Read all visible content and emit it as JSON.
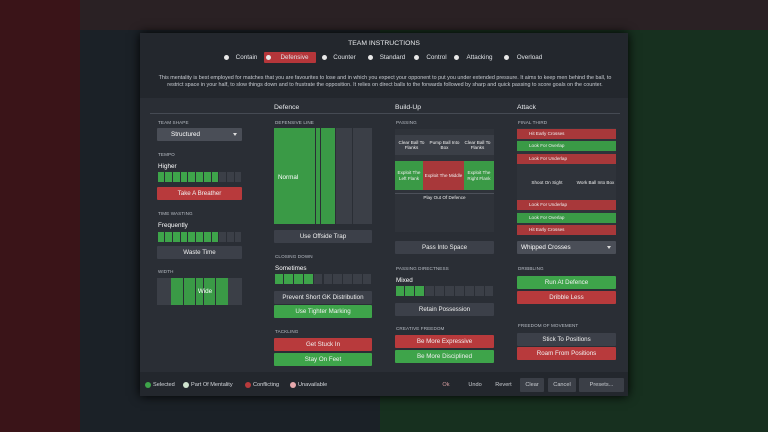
{
  "title": "TEAM INSTRUCTIONS",
  "mentalities": [
    "Contain",
    "Defensive",
    "Counter",
    "Standard",
    "Control",
    "Attacking",
    "Overload"
  ],
  "description": "This mentality is best employed for matches that you are favourites to lose and in which you expect your opponent to put you under extended pressure. It aims to keep men behind the ball, to restrict space in your half, to slow things down and to frustrate the opposition. It relies on direct balls to the forwards followed by sharp and quick passing to score goals on the counter.",
  "columns": [
    "Defence",
    "Build-Up",
    "Attack"
  ],
  "general": {
    "team_shape": {
      "label": "TEAM SHAPE",
      "value": "Structured"
    },
    "tempo": {
      "label": "TEMPO",
      "value": "Higher",
      "button": "Take A Breather"
    },
    "time_wasting": {
      "label": "TIME WASTING",
      "value": "Frequently",
      "button": "Waste Time"
    },
    "width": {
      "label": "WIDTH",
      "value": "Wide"
    }
  },
  "defence": {
    "defensive_line": {
      "label": "DEFENSIVE LINE",
      "value": "Normal",
      "button": "Use Offside Trap"
    },
    "closing_down": {
      "label": "CLOSING DOWN",
      "value": "Sometimes",
      "buttons": [
        "Prevent Short GK Distribution",
        "Use Tighter Marking"
      ]
    },
    "tackling": {
      "label": "TACKLING",
      "buttons": [
        "Get Stuck In",
        "Stay On Feet"
      ]
    }
  },
  "build_up": {
    "passing": {
      "label": "PASSING",
      "zones": [
        "Clear Ball To Flanks",
        "Pump Ball Into Box",
        "Clear Ball To Flanks",
        "Exploit The Left Flank",
        "Exploit The Middle",
        "Exploit The Right Flank",
        "Play Out Of Defence"
      ],
      "button": "Pass Into Space"
    },
    "passing_directness": {
      "label": "PASSING DIRECTNESS",
      "value": "Mixed",
      "button": "Retain Possession"
    },
    "creative_freedom": {
      "label": "CREATIVE FREEDOM",
      "buttons": [
        "Be More Expressive",
        "Be More Disciplined"
      ]
    }
  },
  "attack": {
    "final_third": {
      "label": "FINAL THIRD",
      "zones": [
        "Hit Early Crosses",
        "Look For Overlap",
        "Look For Underlap",
        "Shoot On Sight",
        "Work Ball Into Box",
        "Look For Underlap",
        "Look For Overlap",
        "Hit Early Crosses"
      ],
      "crossing": "Whipped Crosses"
    },
    "dribbling": {
      "label": "DRIBBLING",
      "buttons": [
        "Run At Defence",
        "Dribble Less"
      ]
    },
    "freedom_of_movement": {
      "label": "FREEDOM OF MOVEMENT",
      "buttons": [
        "Stick To Positions",
        "Roam From Positions"
      ]
    }
  },
  "legend": [
    "Selected",
    "Part Of Mentality",
    "Conflicting",
    "Unavailable"
  ],
  "footer_buttons": [
    "Ok",
    "Undo",
    "Revert",
    "Clear",
    "Cancel",
    "Presets..."
  ]
}
